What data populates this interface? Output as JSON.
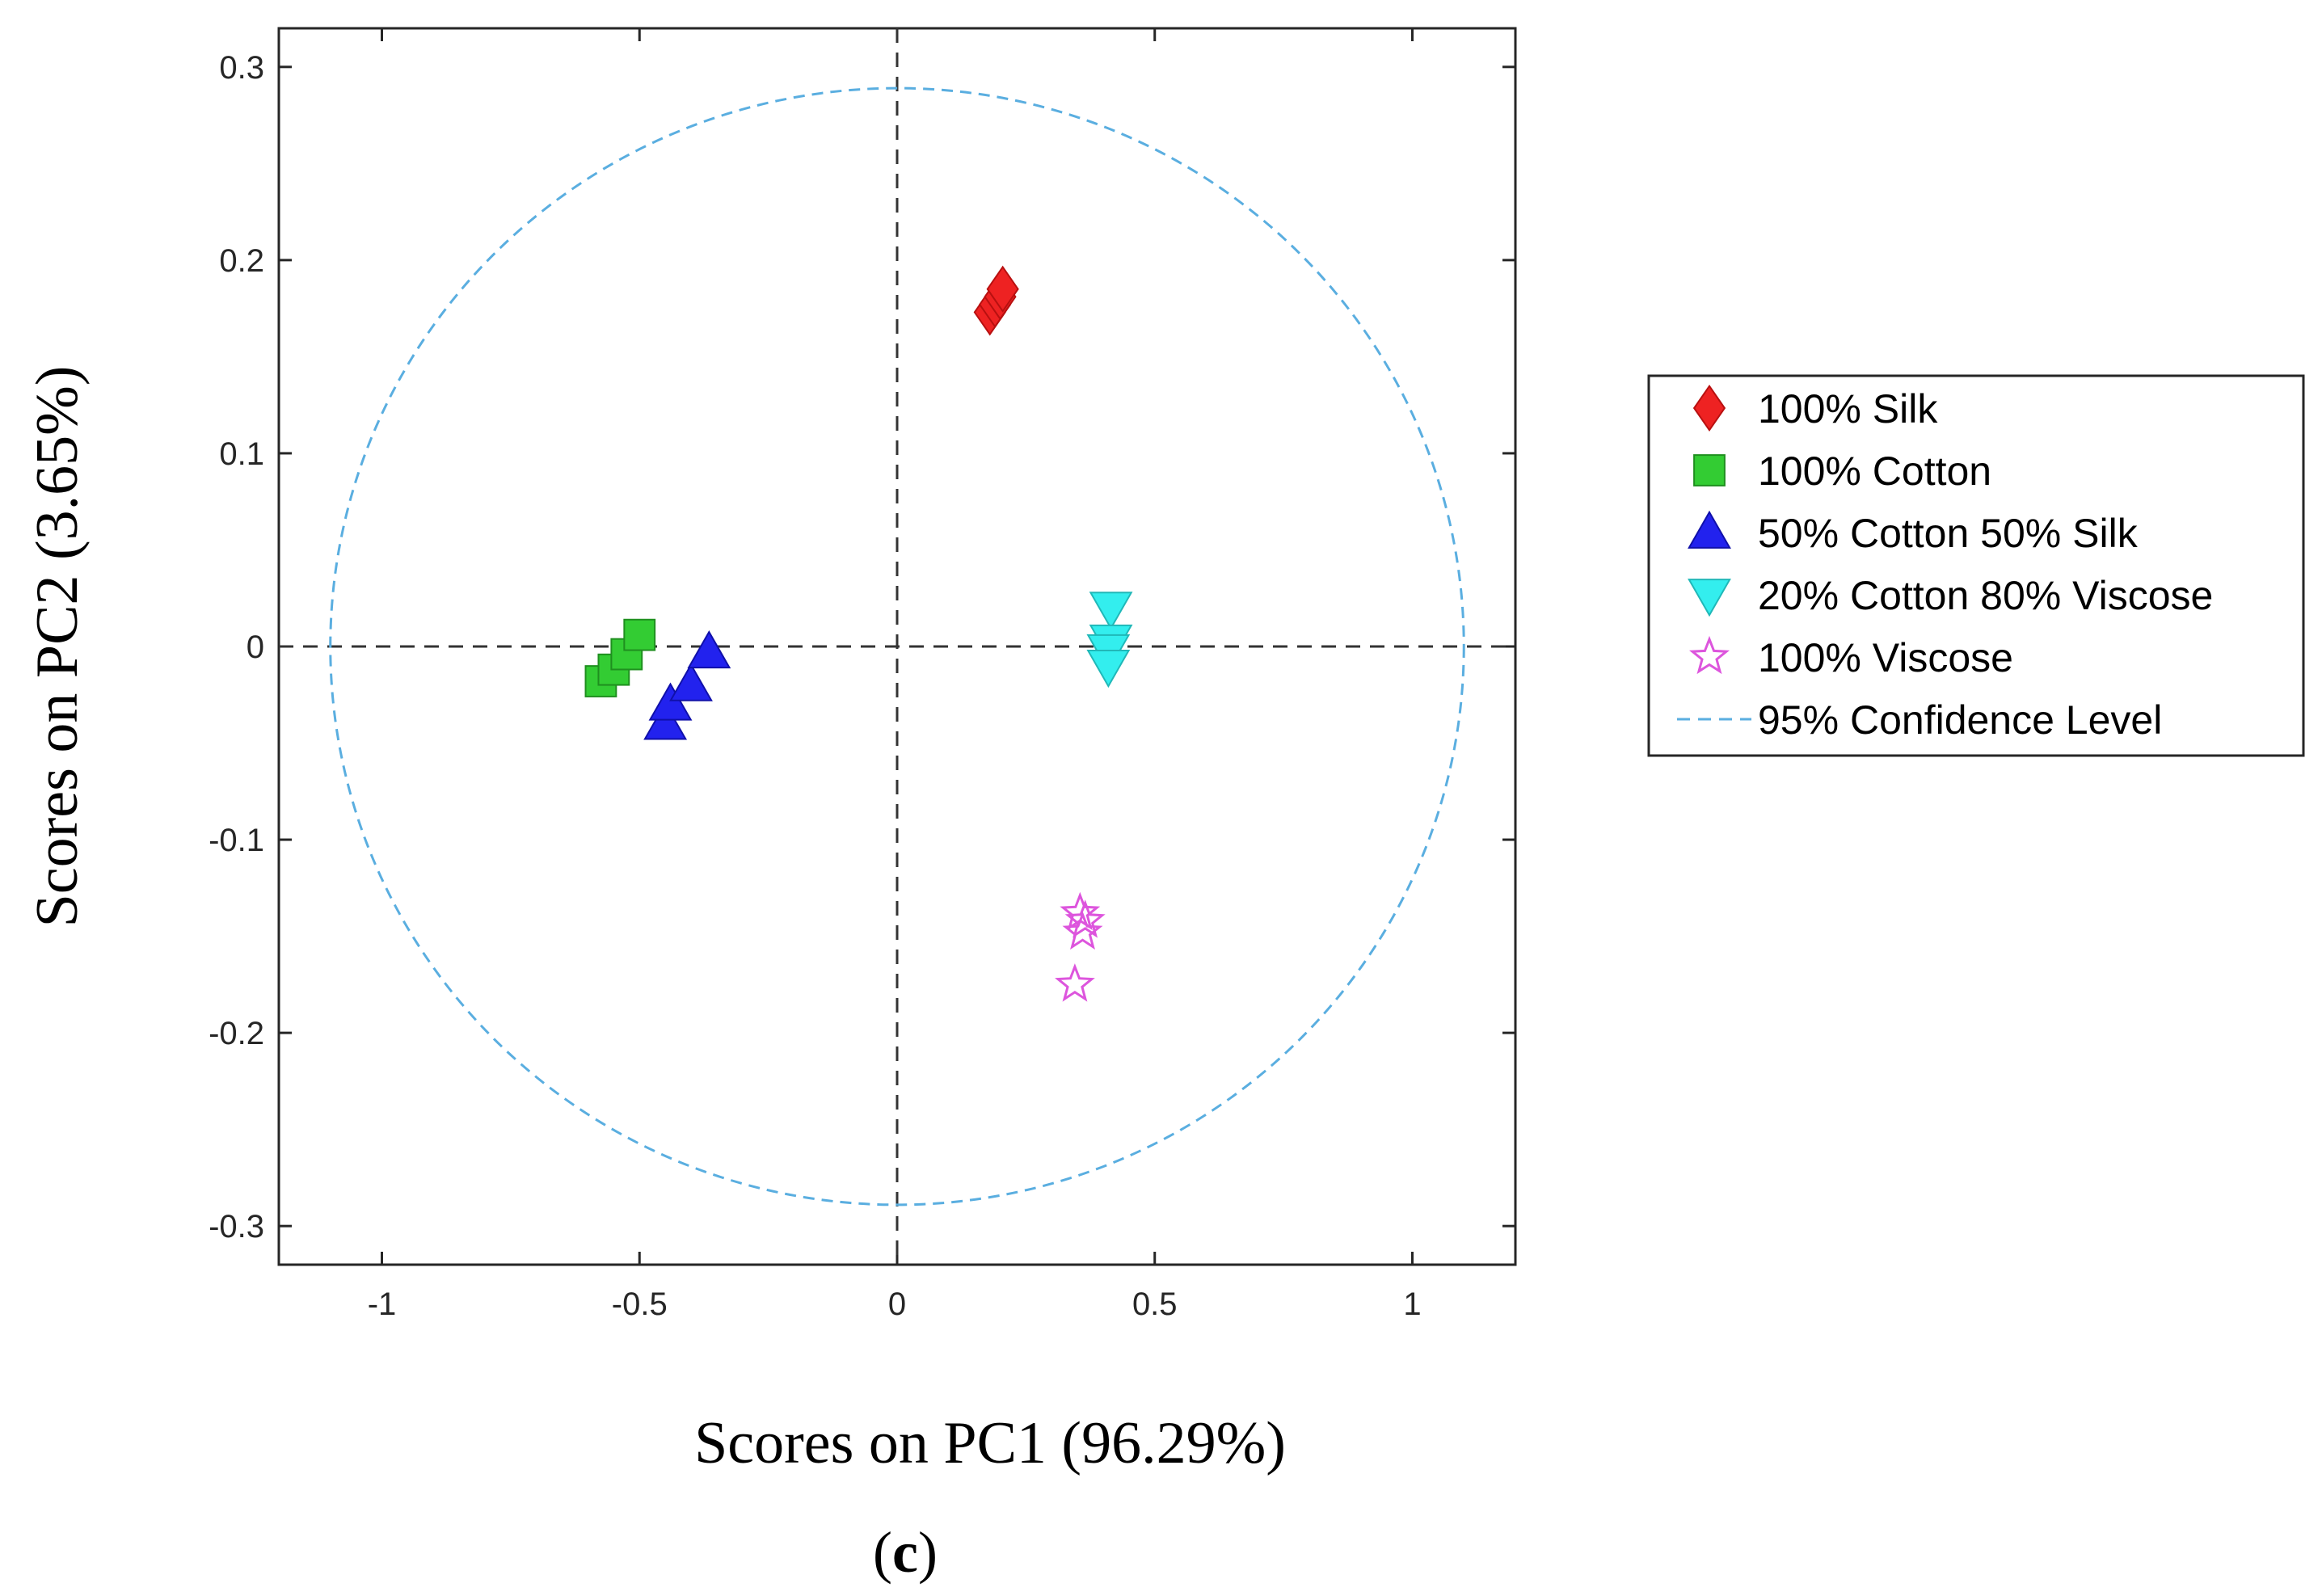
{
  "chart_data": {
    "type": "scatter",
    "xlabel": "Scores on PC1 (96.29%)",
    "ylabel": "Scores on PC2 (3.65%)",
    "panel_label_open": "(",
    "panel_label_letter": "c",
    "panel_label_close": ")",
    "xlim": [
      -1.2,
      1.2
    ],
    "ylim": [
      -0.32,
      0.32
    ],
    "xticks": [
      -1,
      -0.5,
      0,
      0.5,
      1
    ],
    "xtick_labels": [
      "-1",
      "-0.5",
      "0",
      "0.5",
      "1"
    ],
    "yticks": [
      0.3,
      0.2,
      0.1,
      0,
      -0.1,
      -0.2,
      -0.3
    ],
    "ytick_labels": [
      "0.3",
      "0.2",
      "0.1",
      "0",
      "-0.1",
      "-0.2",
      "-0.3"
    ],
    "reference_lines": {
      "x": 0,
      "y": 0,
      "style": "dashed"
    },
    "confidence_ellipse": {
      "label": "95% Confidence Level",
      "center": [
        0,
        0
      ],
      "rx": 1.1,
      "ry": 0.289,
      "color": "#5aaee0"
    },
    "legend_position": "right",
    "series": [
      {
        "name": "100% Silk",
        "marker": "diamond",
        "color": "#ee2222",
        "points": [
          [
            0.18,
            0.173
          ],
          [
            0.19,
            0.177
          ],
          [
            0.2,
            0.181
          ],
          [
            0.205,
            0.185
          ]
        ]
      },
      {
        "name": "100% Cotton",
        "marker": "square",
        "color": "#33cc33",
        "points": [
          [
            -0.575,
            -0.018
          ],
          [
            -0.55,
            -0.012
          ],
          [
            -0.525,
            -0.004
          ],
          [
            -0.5,
            0.006
          ]
        ]
      },
      {
        "name": "50% Cotton 50% Silk",
        "marker": "triangle-up",
        "color": "#2222ee",
        "points": [
          [
            -0.45,
            -0.04
          ],
          [
            -0.44,
            -0.03
          ],
          [
            -0.4,
            -0.02
          ],
          [
            -0.365,
            -0.003
          ]
        ]
      },
      {
        "name": "20% Cotton 80% Viscose",
        "marker": "triangle-down",
        "color": "#33eeee",
        "points": [
          [
            0.415,
            0.02
          ],
          [
            0.415,
            0.003
          ],
          [
            0.41,
            -0.002
          ],
          [
            0.41,
            -0.01
          ]
        ]
      },
      {
        "name": "100% Viscose",
        "marker": "star",
        "color": "#dd55dd",
        "points": [
          [
            0.355,
            -0.138
          ],
          [
            0.365,
            -0.142
          ],
          [
            0.36,
            -0.148
          ],
          [
            0.345,
            -0.175
          ]
        ]
      }
    ]
  }
}
